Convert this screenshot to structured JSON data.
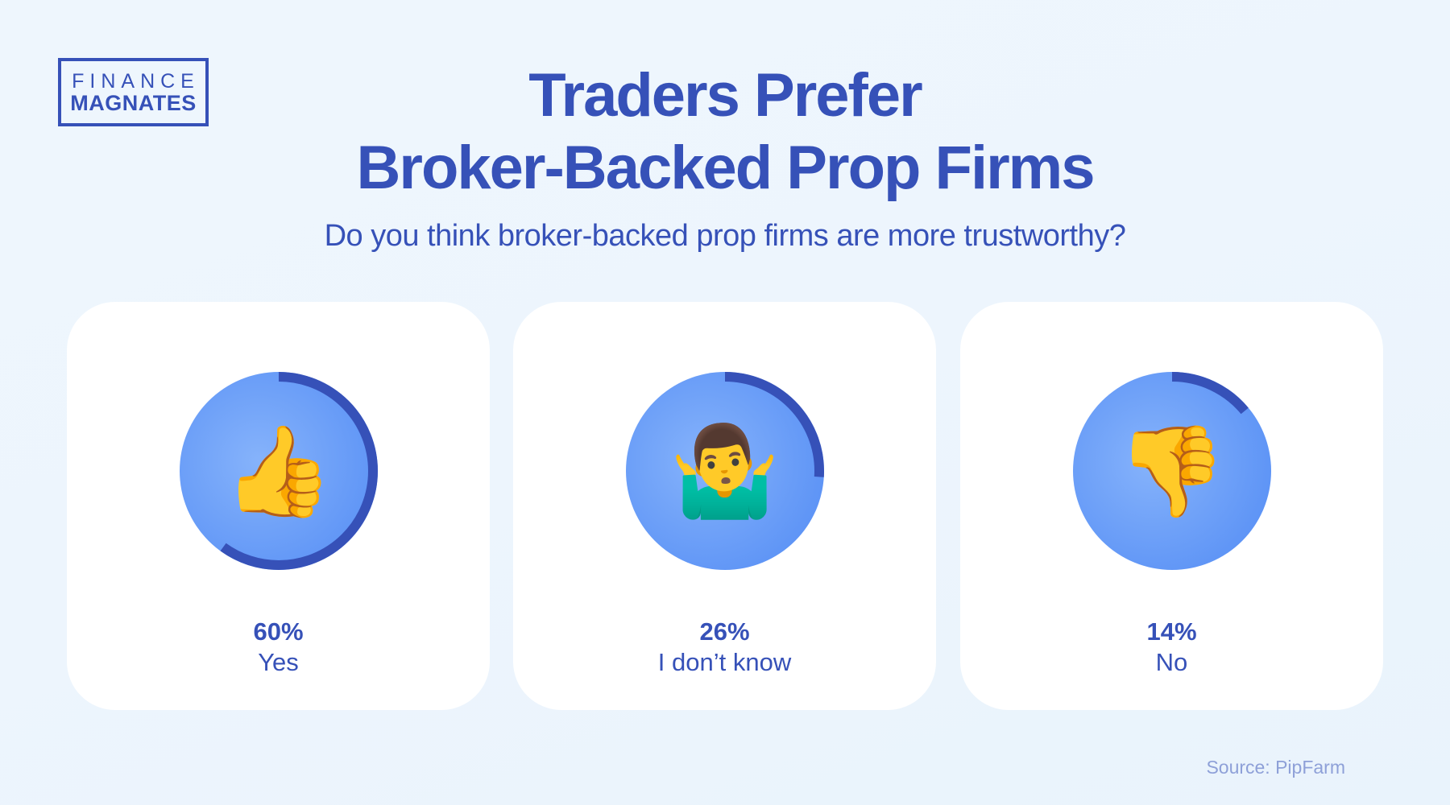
{
  "logo": {
    "line1": "FINANCE",
    "line2": "MAGNATES"
  },
  "title": {
    "line1": "Traders Prefer",
    "line2": "Broker-Backed Prop Firms"
  },
  "subtitle": "Do you think broker-backed prop firms are more trustworthy?",
  "colors": {
    "accent": "#3651b8",
    "circle": "#6a9ef8",
    "background": "#eef6fd"
  },
  "chart_data": {
    "type": "pie",
    "title": "Traders Prefer Broker-Backed Prop Firms",
    "question": "Do you think broker-backed prop firms are more trustworthy?",
    "categories": [
      "Yes",
      "I don’t know",
      "No"
    ],
    "values": [
      60,
      26,
      14
    ],
    "unit": "%",
    "items": [
      {
        "label": "Yes",
        "value": 60,
        "value_label": "60%",
        "icon": "thumbs-up-emoji",
        "emoji": "👍"
      },
      {
        "label": "I don’t know",
        "value": 26,
        "value_label": "26%",
        "icon": "shrug-emoji",
        "emoji": "🤷‍♂️"
      },
      {
        "label": "No",
        "value": 14,
        "value_label": "14%",
        "icon": "thumbs-down-emoji",
        "emoji": "👎"
      }
    ]
  },
  "source": "Source: PipFarm"
}
